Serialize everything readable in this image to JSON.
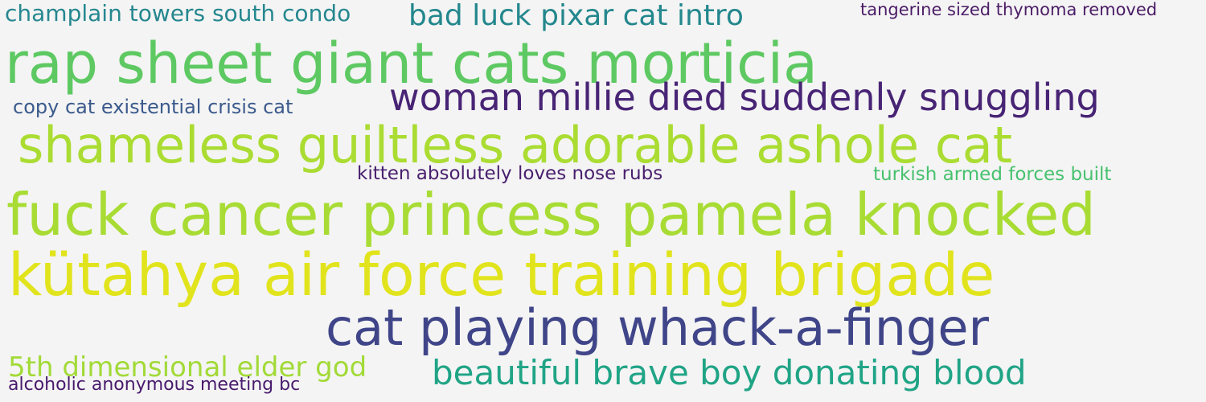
{
  "words": [
    {
      "text": "champlain towers south condo",
      "color": "#25878f"
    },
    {
      "text": "bad luck pixar cat intro",
      "color": "#23878d"
    },
    {
      "text": "tangerine sized thymoma removed",
      "color": "#4b1c66"
    },
    {
      "text": "rap sheet giant cats morticia",
      "color": "#5ec962"
    },
    {
      "text": "copy cat existential crisis cat",
      "color": "#3b5a8c"
    },
    {
      "text": "woman millie died suddenly snuggling",
      "color": "#482475"
    },
    {
      "text": "shameless guiltless adorable ashole cat",
      "color": "#aadc32"
    },
    {
      "text": "kitten absolutely loves nose rubs",
      "color": "#481f6e"
    },
    {
      "text": "turkish armed forces built",
      "color": "#47c16e"
    },
    {
      "text": "fuck cancer princess pamela knocked",
      "color": "#a8dc34"
    },
    {
      "text": "kütahya air force training brigade",
      "color": "#e1e41c"
    },
    {
      "text": "cat playing whack-a-finger",
      "color": "#3f4588"
    },
    {
      "text": "5th dimensional elder god",
      "color": "#a2da37"
    },
    {
      "text": "beautiful brave boy donating blood",
      "color": "#20a486"
    },
    {
      "text": "alcoholic anonymous meeting bc",
      "color": "#481a6c"
    }
  ]
}
